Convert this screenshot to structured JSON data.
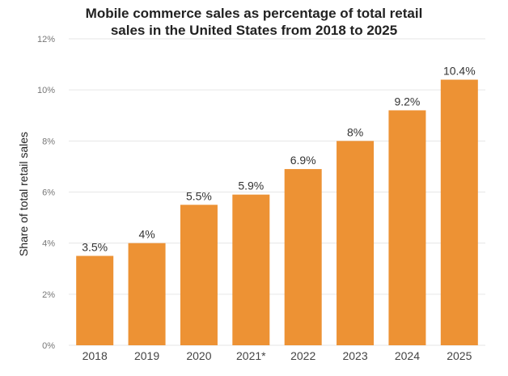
{
  "chart_data": {
    "type": "bar",
    "title_line1": "Mobile commerce sales as percentage of total retail",
    "title_line2": "sales in the United States from 2018 to 2025",
    "xlabel": "",
    "ylabel": "Share of  total retail sales",
    "categories": [
      "2018",
      "2019",
      "2020",
      "2021*",
      "2022",
      "2023",
      "2024",
      "2025"
    ],
    "values": [
      3.5,
      4,
      5.5,
      5.9,
      6.9,
      8,
      9.2,
      10.4
    ],
    "data_labels": [
      "3.5%",
      "4%",
      "5.5%",
      "5.9%",
      "6.9%",
      "8%",
      "9.2%",
      "10.4%"
    ],
    "ylim": [
      0,
      12
    ],
    "y_ticks": [
      {
        "value": 0,
        "label": "0%"
      },
      {
        "value": 2,
        "label": "2%"
      },
      {
        "value": 4,
        "label": "4%"
      },
      {
        "value": 6,
        "label": "6%"
      },
      {
        "value": 8,
        "label": "8%"
      },
      {
        "value": 10,
        "label": "10%"
      },
      {
        "value": 12,
        "label": "12%"
      }
    ],
    "grid": true,
    "bar_color": "#ED9234",
    "grid_color": "#E6E6E6"
  }
}
